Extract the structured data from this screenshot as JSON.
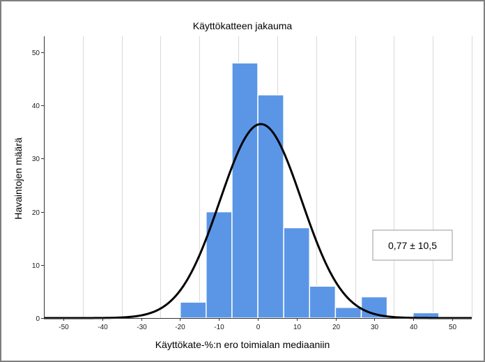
{
  "chart_data": {
    "type": "bar",
    "title": "Käyttökatteen jakauma",
    "xlabel": "Käyttökate-%:n ero toimialan mediaaniin",
    "ylabel": "Havaintojen määrä",
    "xlim": [
      -55,
      55
    ],
    "ylim": [
      0,
      52
    ],
    "x_ticks": [
      -50,
      -40,
      -30,
      -20,
      -10,
      0,
      10,
      20,
      30,
      40,
      50
    ],
    "y_ticks": [
      0,
      10,
      20,
      30,
      40,
      50
    ],
    "grid": "vertical",
    "bin_width": 6.65,
    "bins": [
      {
        "x0": -19.95,
        "x1": -13.3,
        "count": 3
      },
      {
        "x0": -13.3,
        "x1": -6.65,
        "count": 20
      },
      {
        "x0": -6.65,
        "x1": 0.0,
        "count": 48
      },
      {
        "x0": 0.0,
        "x1": 6.65,
        "count": 42
      },
      {
        "x0": 6.65,
        "x1": 13.3,
        "count": 17
      },
      {
        "x0": 13.3,
        "x1": 19.95,
        "count": 6
      },
      {
        "x0": 19.95,
        "x1": 26.6,
        "count": 2
      },
      {
        "x0": 26.6,
        "x1": 33.25,
        "count": 4
      },
      {
        "x0": 33.25,
        "x1": 39.9,
        "count": 0
      },
      {
        "x0": 39.9,
        "x1": 46.55,
        "count": 1
      }
    ],
    "normal_curve": {
      "mean": 0.77,
      "sd": 10.5,
      "peak": 36.5
    },
    "annotation": "0,77 ± 10,5",
    "colors": {
      "bar": "#5b96e6",
      "bar_edge": "#ffffff",
      "curve": "#000000",
      "grid": "#d9d9d9"
    }
  }
}
